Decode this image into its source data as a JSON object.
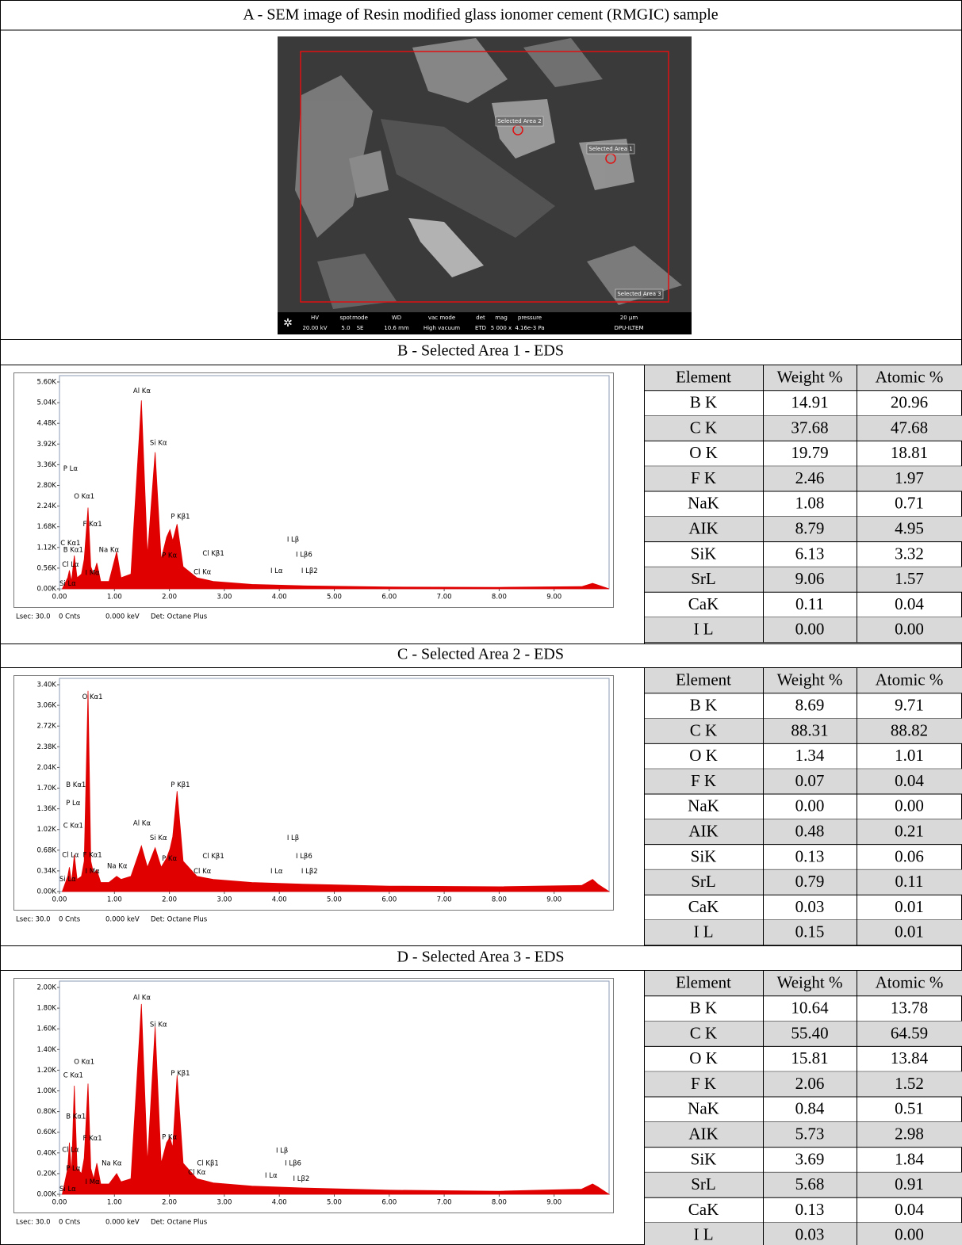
{
  "figure": {
    "sem": {
      "title": "A - SEM image of Resin modified glass ionomer cement (RMGIC) sample",
      "labels": [
        "Selected Area 2",
        "Selected Area 1",
        "Selected Area 3"
      ],
      "info_headers": [
        "HV",
        "spot",
        "mode",
        "WD",
        "vac mode",
        "det",
        "mag",
        "pressure",
        "20 µm"
      ],
      "info_values": [
        "20.00 kV",
        "5.0",
        "SE",
        "10.6 mm",
        "High vacuum",
        "ETD",
        "5 000 x",
        "4.16e-3 Pa",
        "DPU-ILTEM"
      ]
    },
    "panels": [
      {
        "title": "B - Selected Area 1 - EDS",
        "table": {
          "header": [
            "Element",
            "Weight %",
            "Atomic %"
          ],
          "rows": [
            [
              "B K",
              "14.91",
              "20.96"
            ],
            [
              "C K",
              "37.68",
              "47.68"
            ],
            [
              "O K",
              "19.79",
              "18.81"
            ],
            [
              "F K",
              "2.46",
              "1.97"
            ],
            [
              "NaK",
              "1.08",
              "0.71"
            ],
            [
              "AIK",
              "8.79",
              "4.95"
            ],
            [
              "SiK",
              "6.13",
              "3.32"
            ],
            [
              "SrL",
              "9.06",
              "1.57"
            ],
            [
              "CaK",
              "0.11",
              "0.04"
            ],
            [
              "I L",
              "0.00",
              "0.00"
            ]
          ]
        }
      },
      {
        "title": "C - Selected Area 2 - EDS",
        "table": {
          "header": [
            "Element",
            "Weight %",
            "Atomic %"
          ],
          "rows": [
            [
              "B K",
              "8.69",
              "9.71"
            ],
            [
              "C K",
              "88.31",
              "88.82"
            ],
            [
              "O K",
              "1.34",
              "1.01"
            ],
            [
              "F K",
              "0.07",
              "0.04"
            ],
            [
              "NaK",
              "0.00",
              "0.00"
            ],
            [
              "AIK",
              "0.48",
              "0.21"
            ],
            [
              "SiK",
              "0.13",
              "0.06"
            ],
            [
              "SrL",
              "0.79",
              "0.11"
            ],
            [
              "CaK",
              "0.03",
              "0.01"
            ],
            [
              "I L",
              "0.15",
              "0.01"
            ]
          ]
        }
      },
      {
        "title": "D - Selected Area 3 - EDS",
        "table": {
          "header": [
            "Element",
            "Weight %",
            "Atomic %"
          ],
          "rows": [
            [
              "B K",
              "10.64",
              "13.78"
            ],
            [
              "C K",
              "55.40",
              "64.59"
            ],
            [
              "O K",
              "15.81",
              "13.84"
            ],
            [
              "F K",
              "2.06",
              "1.52"
            ],
            [
              "NaK",
              "0.84",
              "0.51"
            ],
            [
              "AIK",
              "5.73",
              "2.98"
            ],
            [
              "SiK",
              "3.69",
              "1.84"
            ],
            [
              "SrL",
              "5.68",
              "0.91"
            ],
            [
              "CaK",
              "0.13",
              "0.04"
            ],
            [
              "I L",
              "0.03",
              "0.00"
            ]
          ]
        }
      }
    ]
  },
  "chart_data": [
    {
      "type": "area",
      "color": "#e00000",
      "xlim": [
        0,
        10
      ],
      "ylim": [
        0,
        5600
      ],
      "xticks": [
        {
          "value": 0,
          "label": "0.00"
        },
        {
          "value": 1,
          "label": "1.00"
        },
        {
          "value": 2,
          "label": "2.00"
        },
        {
          "value": 3,
          "label": "3.00"
        },
        {
          "value": 4,
          "label": "4.00"
        },
        {
          "value": 5,
          "label": "5.00"
        },
        {
          "value": 6,
          "label": "6.00"
        },
        {
          "value": 7,
          "label": "7.00"
        },
        {
          "value": 8,
          "label": "8.00"
        },
        {
          "value": 9,
          "label": "9.00"
        }
      ],
      "yticks": [
        {
          "value": 0,
          "label": "0.00K"
        },
        {
          "value": 560,
          "label": "0.56K"
        },
        {
          "value": 1120,
          "label": "1.12K"
        },
        {
          "value": 1680,
          "label": "1.68K"
        },
        {
          "value": 2240,
          "label": "2.24K"
        },
        {
          "value": 2800,
          "label": "2.80K"
        },
        {
          "value": 3360,
          "label": "3.36K"
        },
        {
          "value": 3920,
          "label": "3.92K"
        },
        {
          "value": 4480,
          "label": "4.48K"
        },
        {
          "value": 5040,
          "label": "5.04K"
        },
        {
          "value": 5600,
          "label": "5.60K"
        }
      ],
      "x": [
        0.05,
        0.15,
        0.18,
        0.22,
        0.27,
        0.32,
        0.4,
        0.45,
        0.52,
        0.57,
        0.62,
        0.68,
        0.75,
        0.9,
        1.04,
        1.12,
        1.3,
        1.49,
        1.6,
        1.74,
        1.85,
        1.95,
        2.01,
        2.06,
        2.14,
        2.25,
        2.5,
        2.8,
        3.5,
        4.5,
        6,
        8,
        9.5,
        9.7,
        9.8,
        10
      ],
      "values": [
        0,
        300,
        500,
        200,
        900,
        300,
        400,
        800,
        2200,
        600,
        400,
        700,
        200,
        200,
        1000,
        300,
        400,
        5100,
        900,
        3700,
        800,
        1400,
        1600,
        1300,
        1750,
        600,
        300,
        200,
        120,
        80,
        50,
        40,
        60,
        150,
        100,
        0
      ],
      "annotations": [
        {
          "text": "Al Kα",
          "x": 1.5,
          "y": 5350
        },
        {
          "text": "Si Kα",
          "x": 1.8,
          "y": 3950
        },
        {
          "text": "P Lα",
          "x": 0.2,
          "y": 3250
        },
        {
          "text": "O Kα1",
          "x": 0.45,
          "y": 2500
        },
        {
          "text": "F Kα1",
          "x": 0.6,
          "y": 1750
        },
        {
          "text": "P Kβ1",
          "x": 2.2,
          "y": 1950
        },
        {
          "text": "C Kα1",
          "x": 0.2,
          "y": 1230
        },
        {
          "text": "B Kα1",
          "x": 0.25,
          "y": 1050
        },
        {
          "text": "Na Kα",
          "x": 0.9,
          "y": 1050
        },
        {
          "text": "P Kα",
          "x": 2.0,
          "y": 900
        },
        {
          "text": "Cl Kβ1",
          "x": 2.8,
          "y": 950
        },
        {
          "text": "Cl Lα",
          "x": 0.2,
          "y": 650
        },
        {
          "text": "I Mα",
          "x": 0.6,
          "y": 430
        },
        {
          "text": "Cl Kα",
          "x": 2.6,
          "y": 450
        },
        {
          "text": "Si Lα",
          "x": 0.15,
          "y": 140
        },
        {
          "text": "I Lβ",
          "x": 4.25,
          "y": 1330
        },
        {
          "text": "I Lβ6",
          "x": 4.45,
          "y": 920
        },
        {
          "text": "I Lα",
          "x": 3.95,
          "y": 480
        },
        {
          "text": "I Lβ2",
          "x": 4.55,
          "y": 480
        }
      ],
      "footer": [
        "Lsec: 30.0",
        "0 Cnts",
        "0.000 keV",
        "Det: Octane Plus"
      ]
    },
    {
      "type": "area",
      "color": "#e00000",
      "xlim": [
        0,
        10
      ],
      "ylim": [
        0,
        3400
      ],
      "xticks": [
        {
          "value": 0,
          "label": "0.00"
        },
        {
          "value": 1,
          "label": "1.00"
        },
        {
          "value": 2,
          "label": "2.00"
        },
        {
          "value": 3,
          "label": "3.00"
        },
        {
          "value": 4,
          "label": "4.00"
        },
        {
          "value": 5,
          "label": "5.00"
        },
        {
          "value": 6,
          "label": "6.00"
        },
        {
          "value": 7,
          "label": "7.00"
        },
        {
          "value": 8,
          "label": "8.00"
        },
        {
          "value": 9,
          "label": "9.00"
        }
      ],
      "yticks": [
        {
          "value": 0,
          "label": "0.00K"
        },
        {
          "value": 340,
          "label": "0.34K"
        },
        {
          "value": 680,
          "label": "0.68K"
        },
        {
          "value": 1020,
          "label": "1.02K"
        },
        {
          "value": 1360,
          "label": "1.36K"
        },
        {
          "value": 1700,
          "label": "1.70K"
        },
        {
          "value": 2040,
          "label": "2.04K"
        },
        {
          "value": 2380,
          "label": "2.38K"
        },
        {
          "value": 2720,
          "label": "2.72K"
        },
        {
          "value": 3060,
          "label": "3.06K"
        },
        {
          "value": 3400,
          "label": "3.40K"
        }
      ],
      "x": [
        0.05,
        0.15,
        0.18,
        0.22,
        0.27,
        0.32,
        0.4,
        0.45,
        0.52,
        0.57,
        0.62,
        0.68,
        0.75,
        0.9,
        1.04,
        1.12,
        1.3,
        1.49,
        1.6,
        1.74,
        1.85,
        1.95,
        2.01,
        2.06,
        2.14,
        2.25,
        2.5,
        2.8,
        3.5,
        4.5,
        6,
        8,
        9.5,
        9.7,
        9.8,
        10
      ],
      "values": [
        0,
        250,
        400,
        150,
        600,
        200,
        250,
        500,
        3300,
        500,
        300,
        350,
        150,
        150,
        250,
        200,
        250,
        750,
        400,
        720,
        400,
        550,
        700,
        900,
        1650,
        500,
        250,
        200,
        150,
        120,
        90,
        80,
        100,
        200,
        120,
        0
      ],
      "annotations": [
        {
          "text": "O Kα1",
          "x": 0.6,
          "y": 3200
        },
        {
          "text": "B Kα1",
          "x": 0.3,
          "y": 1750
        },
        {
          "text": "P Lα",
          "x": 0.25,
          "y": 1450
        },
        {
          "text": "C Kα1",
          "x": 0.25,
          "y": 1080
        },
        {
          "text": "Al Kα",
          "x": 1.5,
          "y": 1120
        },
        {
          "text": "Si Kα",
          "x": 1.8,
          "y": 880
        },
        {
          "text": "P Kβ1",
          "x": 2.2,
          "y": 1750
        },
        {
          "text": "Cl Lα",
          "x": 0.2,
          "y": 600
        },
        {
          "text": "F Kα1",
          "x": 0.6,
          "y": 600
        },
        {
          "text": "Na Kα",
          "x": 1.05,
          "y": 420
        },
        {
          "text": "I Mα",
          "x": 0.6,
          "y": 330
        },
        {
          "text": "P Kα",
          "x": 2.0,
          "y": 540
        },
        {
          "text": "Cl Kβ1",
          "x": 2.8,
          "y": 580
        },
        {
          "text": "Cl Kα",
          "x": 2.6,
          "y": 330
        },
        {
          "text": "Si Lα",
          "x": 0.15,
          "y": 200
        },
        {
          "text": "I Lβ",
          "x": 4.25,
          "y": 880
        },
        {
          "text": "I Lβ6",
          "x": 4.45,
          "y": 580
        },
        {
          "text": "I Lα",
          "x": 3.95,
          "y": 330
        },
        {
          "text": "I Lβ2",
          "x": 4.55,
          "y": 330
        }
      ],
      "footer": [
        "Lsec: 30.0",
        "0 Cnts",
        "0.000 keV",
        "Det: Octane Plus"
      ]
    },
    {
      "type": "area",
      "color": "#e00000",
      "xlim": [
        0,
        10
      ],
      "ylim": [
        0,
        2000
      ],
      "xticks": [
        {
          "value": 0,
          "label": "0.00"
        },
        {
          "value": 1,
          "label": "1.00"
        },
        {
          "value": 2,
          "label": "2.00"
        },
        {
          "value": 3,
          "label": "3.00"
        },
        {
          "value": 4,
          "label": "4.00"
        },
        {
          "value": 5,
          "label": "5.00"
        },
        {
          "value": 6,
          "label": "6.00"
        },
        {
          "value": 7,
          "label": "7.00"
        },
        {
          "value": 8,
          "label": "8.00"
        },
        {
          "value": 9,
          "label": "9.00"
        }
      ],
      "yticks": [
        {
          "value": 0,
          "label": "0.00K"
        },
        {
          "value": 200,
          "label": "0.20K"
        },
        {
          "value": 400,
          "label": "0.40K"
        },
        {
          "value": 600,
          "label": "0.60K"
        },
        {
          "value": 800,
          "label": "0.80K"
        },
        {
          "value": 1000,
          "label": "1.00K"
        },
        {
          "value": 1200,
          "label": "1.20K"
        },
        {
          "value": 1400,
          "label": "1.40K"
        },
        {
          "value": 1600,
          "label": "1.60K"
        },
        {
          "value": 1800,
          "label": "1.80K"
        },
        {
          "value": 2000,
          "label": "2.00K"
        }
      ],
      "x": [
        0.05,
        0.15,
        0.18,
        0.22,
        0.27,
        0.32,
        0.4,
        0.45,
        0.52,
        0.57,
        0.62,
        0.68,
        0.75,
        0.9,
        1.04,
        1.12,
        1.3,
        1.49,
        1.6,
        1.74,
        1.85,
        1.95,
        2.01,
        2.06,
        2.14,
        2.25,
        2.5,
        2.8,
        3.5,
        4.5,
        6,
        8,
        9.5,
        9.7,
        9.8,
        10
      ],
      "values": [
        0,
        250,
        500,
        200,
        1050,
        250,
        200,
        350,
        1070,
        250,
        150,
        300,
        100,
        100,
        200,
        120,
        150,
        1840,
        300,
        1620,
        300,
        500,
        550,
        450,
        1150,
        300,
        150,
        110,
        80,
        60,
        40,
        30,
        50,
        100,
        70,
        0
      ],
      "annotations": [
        {
          "text": "Al Kα",
          "x": 1.5,
          "y": 1900
        },
        {
          "text": "Si Kα",
          "x": 1.8,
          "y": 1640
        },
        {
          "text": "O Kα1",
          "x": 0.45,
          "y": 1280
        },
        {
          "text": "C Kα1",
          "x": 0.25,
          "y": 1150
        },
        {
          "text": "P Kβ1",
          "x": 2.2,
          "y": 1170
        },
        {
          "text": "B Kα1",
          "x": 0.3,
          "y": 750
        },
        {
          "text": "F Kα1",
          "x": 0.6,
          "y": 540
        },
        {
          "text": "P Kα",
          "x": 2.0,
          "y": 550
        },
        {
          "text": "Cl Lα",
          "x": 0.2,
          "y": 430
        },
        {
          "text": "Na Kα",
          "x": 0.95,
          "y": 300
        },
        {
          "text": "Cl Kβ1",
          "x": 2.7,
          "y": 300
        },
        {
          "text": "P Lα",
          "x": 0.25,
          "y": 250
        },
        {
          "text": "Cl Kα",
          "x": 2.5,
          "y": 210
        },
        {
          "text": "I Mα",
          "x": 0.6,
          "y": 120
        },
        {
          "text": "Si Lα",
          "x": 0.15,
          "y": 50
        },
        {
          "text": "I Lβ",
          "x": 4.05,
          "y": 420
        },
        {
          "text": "I Lβ6",
          "x": 4.25,
          "y": 300
        },
        {
          "text": "I Lα",
          "x": 3.85,
          "y": 180
        },
        {
          "text": "I Lβ2",
          "x": 4.4,
          "y": 150
        }
      ],
      "footer": [
        "Lsec: 30.0",
        "0 Cnts",
        "0.000 keV",
        "Det: Octane Plus"
      ]
    }
  ]
}
